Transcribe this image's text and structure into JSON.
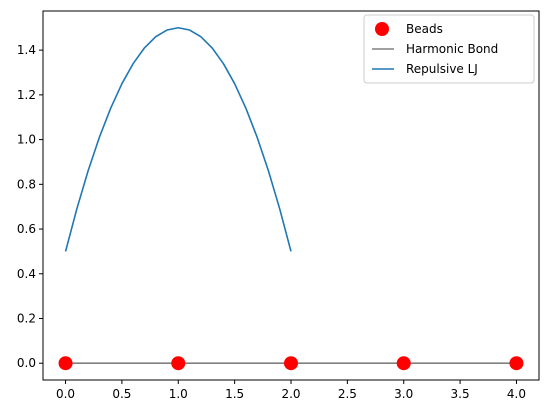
{
  "chart_data": {
    "type": "line",
    "title": "",
    "xlabel": "",
    "ylabel": "",
    "xlim": [
      -0.2,
      4.2
    ],
    "ylim": [
      -0.075,
      1.575
    ],
    "xticks": [
      0.0,
      0.5,
      1.0,
      1.5,
      2.0,
      2.5,
      3.0,
      3.5,
      4.0
    ],
    "xtick_labels": [
      "0.0",
      "0.5",
      "1.0",
      "1.5",
      "2.0",
      "2.5",
      "3.0",
      "3.5",
      "4.0"
    ],
    "yticks": [
      0.0,
      0.2,
      0.4,
      0.6,
      0.8,
      1.0,
      1.2,
      1.4
    ],
    "ytick_labels": [
      "0.0",
      "0.2",
      "0.4",
      "0.6",
      "0.8",
      "1.0",
      "1.2",
      "1.4"
    ],
    "grid": false,
    "legend_position": "top-right",
    "series": [
      {
        "name": "Beads",
        "kind": "markers",
        "color": "#ff0000",
        "x": [
          0,
          1,
          2,
          3,
          4
        ],
        "y": [
          0,
          0,
          0,
          0,
          0
        ]
      },
      {
        "name": "Harmonic Bond",
        "kind": "line",
        "color": "#808080",
        "x": [
          0,
          1,
          2,
          3,
          4
        ],
        "y": [
          0,
          0,
          0,
          0,
          0
        ]
      },
      {
        "name": "Repulsive LJ",
        "kind": "line",
        "color": "#1f77b4",
        "x": [
          0.0,
          0.1,
          0.2,
          0.3,
          0.4,
          0.5,
          0.6,
          0.7,
          0.8,
          0.9,
          1.0,
          1.1,
          1.2,
          1.3,
          1.4,
          1.5,
          1.6,
          1.7,
          1.8,
          1.9,
          2.0
        ],
        "y": [
          0.5,
          0.69,
          0.86,
          1.01,
          1.14,
          1.25,
          1.34,
          1.41,
          1.46,
          1.49,
          1.5,
          1.49,
          1.46,
          1.41,
          1.34,
          1.25,
          1.14,
          1.01,
          0.86,
          0.69,
          0.5
        ]
      }
    ]
  }
}
